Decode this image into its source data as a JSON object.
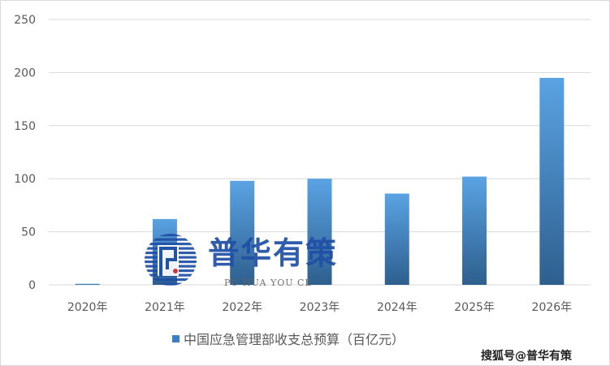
{
  "chart_data": {
    "type": "bar",
    "categories": [
      "2020年",
      "2021年",
      "2022年",
      "2023年",
      "2024年",
      "2025年",
      "2026年"
    ],
    "series": [
      {
        "name": "中国应急管理部收支总预算（百亿元）",
        "values": [
          1,
          62,
          98,
          100,
          86,
          102,
          195
        ]
      }
    ],
    "ylim": [
      0,
      250
    ],
    "yticks": [
      0,
      50,
      100,
      150,
      200,
      250
    ],
    "grid": true,
    "legend": "bottom",
    "colors": {
      "bar_top": "#5aa3e3",
      "bar_bottom": "#2e5f8e",
      "grid": "#d9d9d9"
    }
  },
  "watermark": {
    "text": "普华有策",
    "subtext": "PU HUA YOU CE"
  },
  "credit": "搜狐号@普华有策"
}
